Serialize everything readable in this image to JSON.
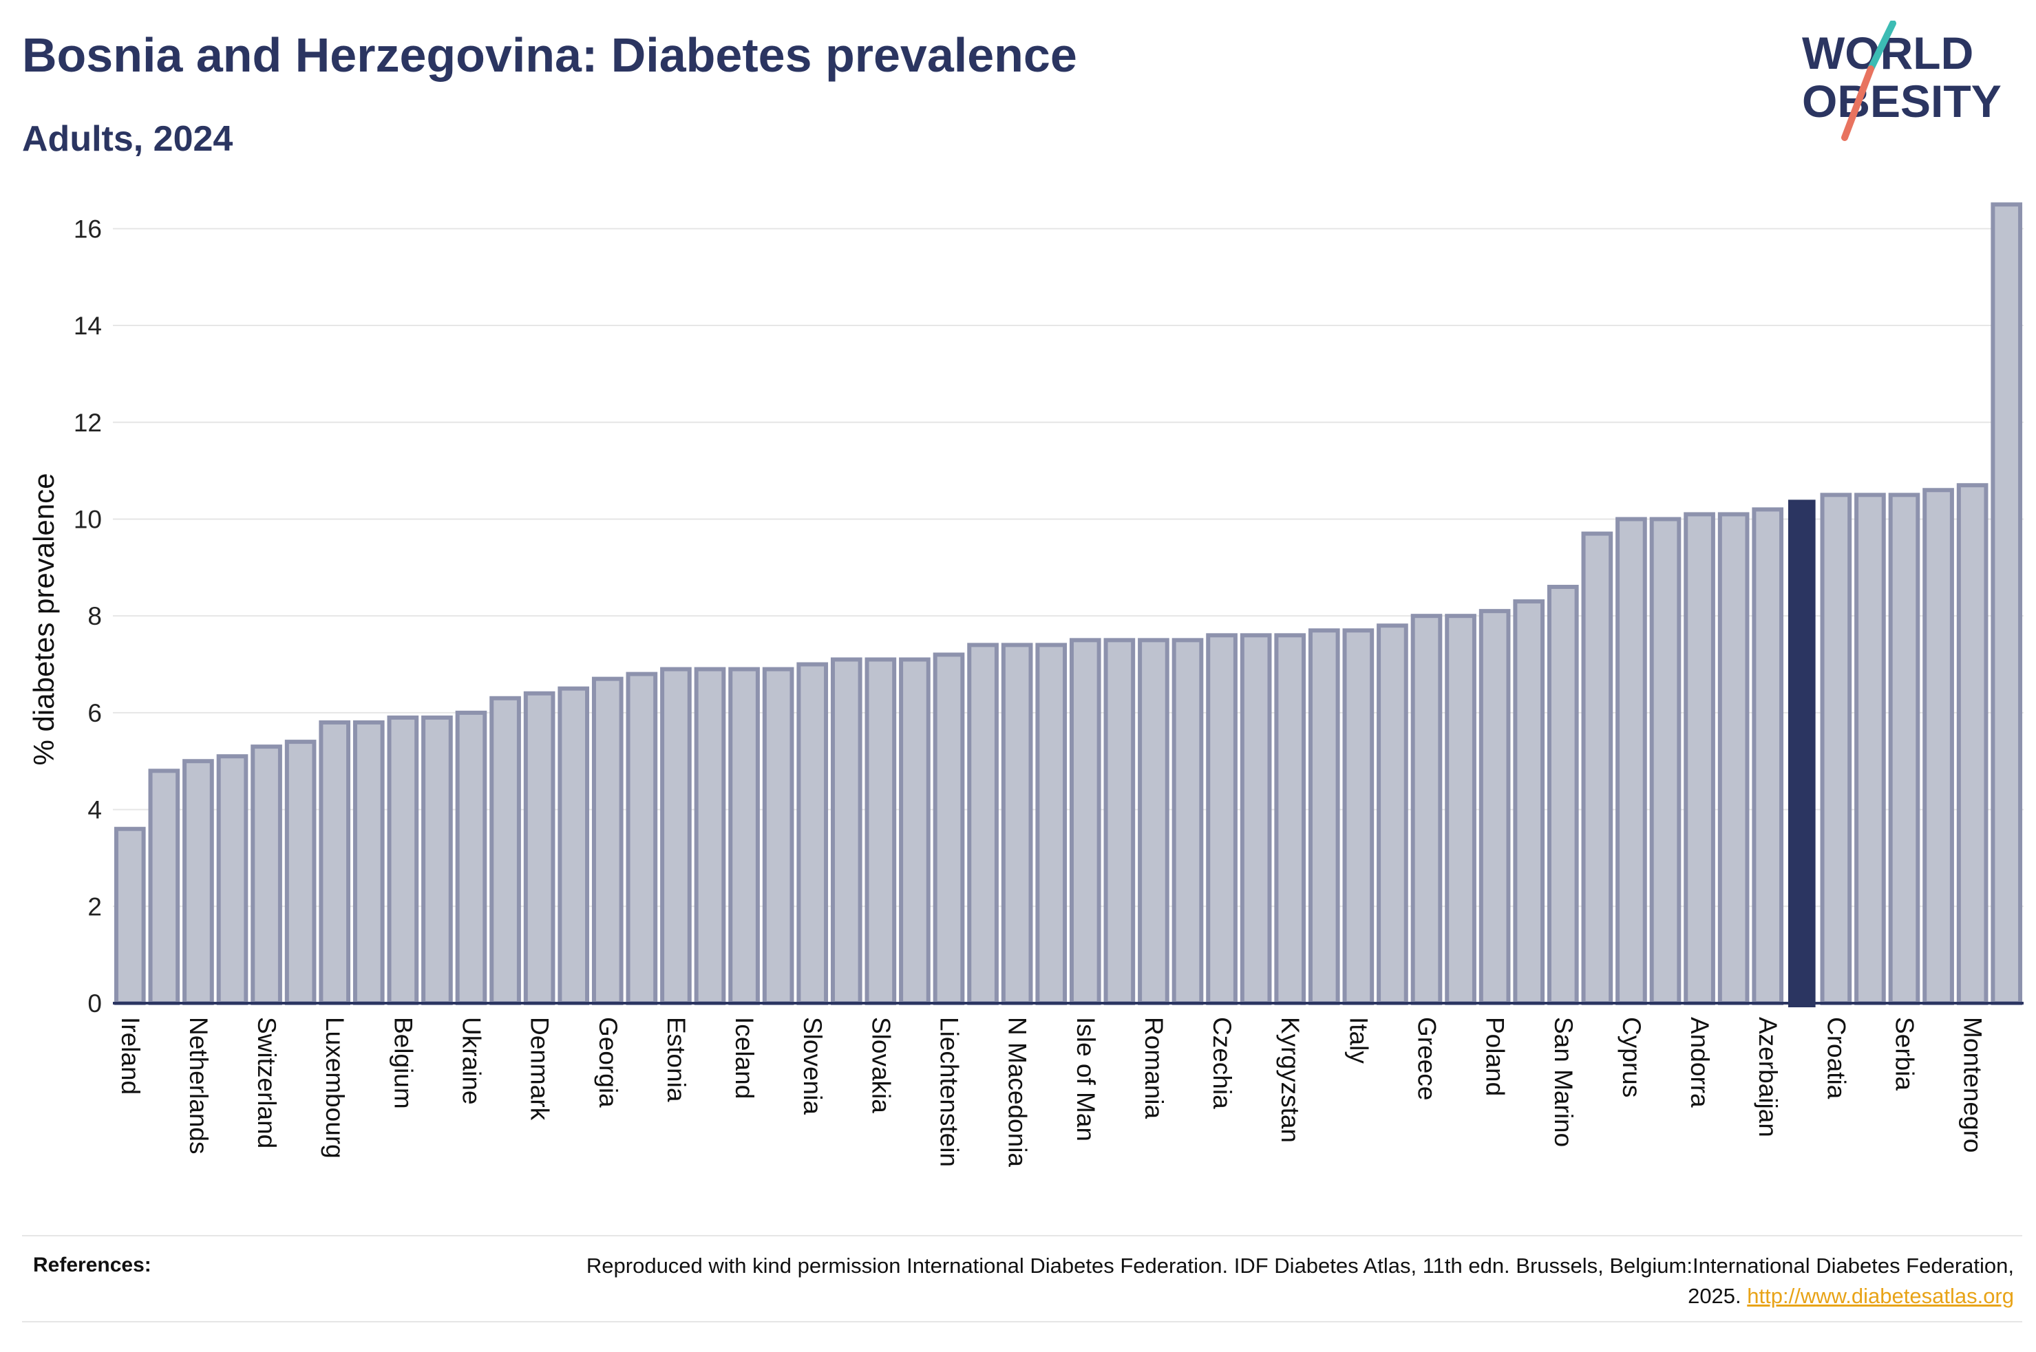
{
  "header": {
    "title": "Bosnia and Herzegovina: Diabetes prevalence",
    "subtitle": "Adults, 2024"
  },
  "logo": {
    "line1": "WORLD",
    "line2": "OBESITY",
    "icon": "world-obesity-logo"
  },
  "colors": {
    "bar": "#bec2cf",
    "bar_stroke": "#8d92ad",
    "highlight": "#2b3561",
    "grid": "#e6e6e6",
    "axis": "#2b3561"
  },
  "chart_data": {
    "type": "bar",
    "title": "Bosnia and Herzegovina: Diabetes prevalence",
    "subtitle": "Adults, 2024",
    "ylabel": "% diabetes prevalence",
    "xlabel": "",
    "ylim": [
      0,
      17
    ],
    "yticks": [
      0,
      2,
      4,
      6,
      8,
      10,
      12,
      14,
      16
    ],
    "grid": true,
    "highlight_index": 49,
    "categories": [
      "Ireland",
      "",
      "Netherlands",
      "",
      "Switzerland",
      "",
      "Luxembourg",
      "",
      "Belgium",
      "",
      "Ukraine",
      "",
      "Denmark",
      "",
      "Georgia",
      "",
      "Estonia",
      "",
      "Iceland",
      "",
      "Slovenia",
      "",
      "Slovakia",
      "",
      "Liechtenstein",
      "",
      "N Macedonia",
      "",
      "Isle of Man",
      "",
      "Romania",
      "",
      "Czechia",
      "",
      "Kyrgyzstan",
      "",
      "Italy",
      "",
      "Greece",
      "",
      "Poland",
      "",
      "San Marino",
      "",
      "Cyprus",
      "",
      "Andorra",
      "",
      "Azerbaijan",
      "",
      "Croatia",
      "",
      "Serbia",
      "",
      "Montenegro",
      ""
    ],
    "values": [
      3.6,
      4.8,
      5.0,
      5.1,
      5.3,
      5.4,
      5.8,
      5.8,
      5.9,
      5.9,
      6.0,
      6.3,
      6.4,
      6.5,
      6.7,
      6.8,
      6.9,
      6.9,
      6.9,
      6.9,
      7.0,
      7.1,
      7.1,
      7.1,
      7.2,
      7.4,
      7.4,
      7.4,
      7.5,
      7.5,
      7.5,
      7.5,
      7.6,
      7.6,
      7.6,
      7.7,
      7.7,
      7.8,
      8.0,
      8.0,
      8.1,
      8.3,
      8.6,
      9.7,
      10.0,
      10.0,
      10.1,
      10.1,
      10.2,
      10.4,
      10.5,
      10.5,
      10.5,
      10.6,
      10.7,
      16.5
    ]
  },
  "references": {
    "label": "References:",
    "text": "Reproduced with kind permission International Diabetes Federation. IDF Diabetes Atlas, 11th edn. Brussels, Belgium:International Diabetes Federation, 2025.",
    "link": "http://www.diabetesatlas.org"
  }
}
